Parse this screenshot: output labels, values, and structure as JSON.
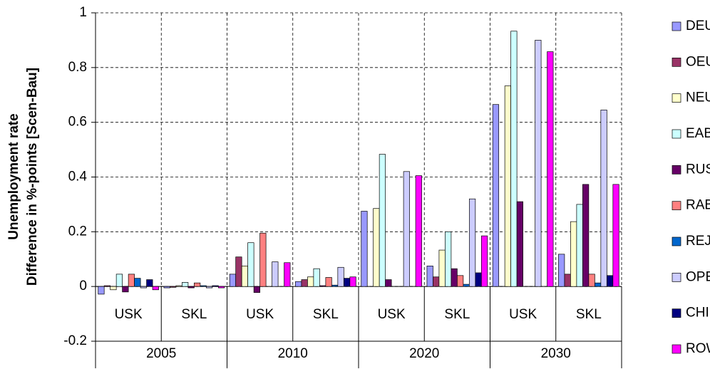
{
  "chart_data": {
    "type": "bar",
    "y_label_lines": [
      "Unemployment rate",
      "Difference in %-points [Scen-Bau]"
    ],
    "categories": [
      "USK",
      "SKL",
      "USK",
      "SKL",
      "USK",
      "SKL",
      "USK",
      "SKL"
    ],
    "category_groups": [
      "2005",
      "2010",
      "2020",
      "2030"
    ],
    "series": [
      {
        "name": "DEU",
        "color": "#9999ff",
        "values": [
          -0.028,
          -0.005,
          0.045,
          0.018,
          0.275,
          0.075,
          0.665,
          0.118
        ]
      },
      {
        "name": "OEU",
        "color": "#993366",
        "values": [
          0.003,
          -0.003,
          0.108,
          0.025,
          0.0,
          0.035,
          0.0,
          0.045
        ]
      },
      {
        "name": "NEU",
        "color": "#ffffcc",
        "values": [
          -0.012,
          0.003,
          0.075,
          0.035,
          0.285,
          0.133,
          0.733,
          0.237
        ]
      },
      {
        "name": "EAB",
        "color": "#ccffff",
        "values": [
          0.045,
          0.015,
          0.16,
          0.065,
          0.483,
          0.2,
          0.933,
          0.3
        ]
      },
      {
        "name": "RUS",
        "color": "#660066",
        "values": [
          -0.02,
          -0.005,
          -0.022,
          0.003,
          0.025,
          0.065,
          0.31,
          0.373
        ]
      },
      {
        "name": "RAB",
        "color": "#ff8080",
        "values": [
          0.045,
          0.013,
          0.195,
          0.033,
          0.0,
          0.04,
          0.0,
          0.045
        ]
      },
      {
        "name": "REJ",
        "color": "#0066cc",
        "values": [
          0.03,
          0.003,
          0.0,
          0.005,
          0.0,
          0.008,
          0.0,
          0.013
        ]
      },
      {
        "name": "OPE",
        "color": "#ccccff",
        "values": [
          -0.005,
          -0.005,
          0.09,
          0.07,
          0.42,
          0.32,
          0.9,
          0.645
        ]
      },
      {
        "name": "CHI",
        "color": "#000080",
        "values": [
          0.025,
          0.003,
          0.0,
          0.03,
          0.0,
          0.05,
          0.0,
          0.04
        ]
      },
      {
        "name": "ROW",
        "color": "#ff00ff",
        "values": [
          -0.012,
          -0.005,
          0.087,
          0.035,
          0.405,
          0.185,
          0.858,
          0.373
        ]
      }
    ],
    "ylim": [
      -0.2,
      1
    ],
    "yticks": [
      -0.2,
      0,
      0.2,
      0.4,
      0.6,
      0.8,
      1
    ],
    "grid": true,
    "legend": "right"
  }
}
